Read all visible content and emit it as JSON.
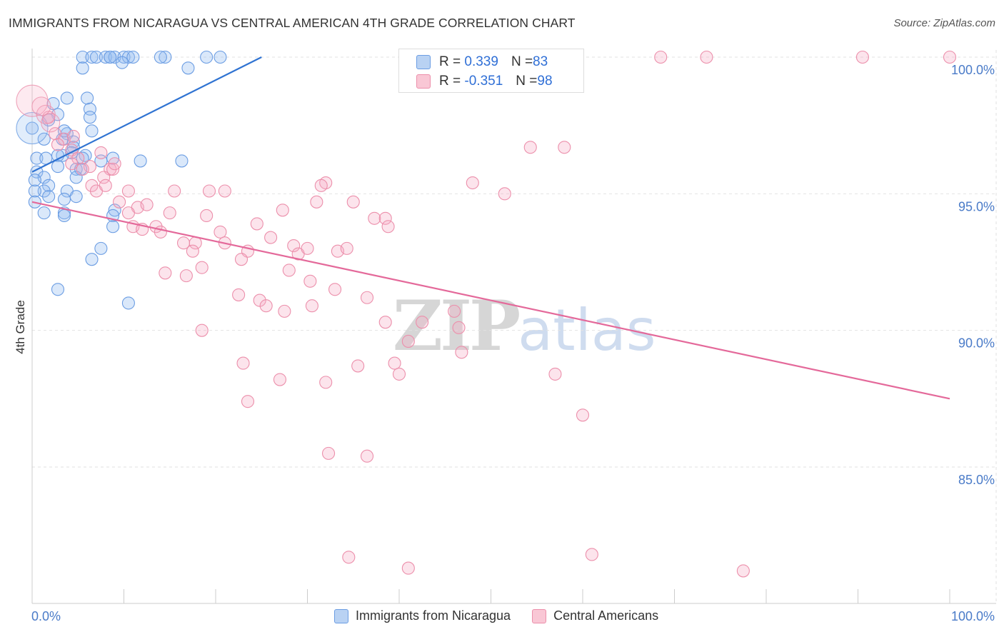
{
  "title": "IMMIGRANTS FROM NICARAGUA VS CENTRAL AMERICAN 4TH GRADE CORRELATION CHART",
  "source": "Source: ZipAtlas.com",
  "watermark": {
    "zip": "ZIP",
    "atlas": "atlas"
  },
  "stats_legend": [
    {
      "r_label": "R = ",
      "r_value": "0.339",
      "n_label": "N = ",
      "n_value": "83",
      "fill": "#b9d2f3",
      "stroke": "#6b9de3"
    },
    {
      "r_label": "R = ",
      "r_value": "-0.351",
      "n_label": "N = ",
      "n_value": "98",
      "fill": "#f9c7d5",
      "stroke": "#ec8fab"
    }
  ],
  "chart_data": {
    "type": "scatter",
    "ylabel": "4th Grade",
    "xlim": [
      0,
      100
    ],
    "ylim": [
      80.5,
      100.5
    ],
    "x_tick_labels": [
      "0.0%",
      "100.0%"
    ],
    "y_ticks": [
      {
        "value": 100,
        "label": "100.0%"
      },
      {
        "value": 95,
        "label": "95.0%"
      },
      {
        "value": 90,
        "label": "90.0%"
      },
      {
        "value": 85,
        "label": "85.0%"
      }
    ],
    "series": [
      {
        "name": "Immigrants from Nicaragua",
        "fill": "rgba(150,188,240,0.35)",
        "stroke": "#6b9de3",
        "trend_color": "#2f73d2",
        "trend": [
          [
            0,
            95.8
          ],
          [
            25,
            100.0
          ]
        ],
        "points": [
          [
            5.5,
            100
          ],
          [
            6.5,
            100
          ],
          [
            7.0,
            100
          ],
          [
            8.0,
            100
          ],
          [
            8.5,
            100
          ],
          [
            9.0,
            100
          ],
          [
            10.0,
            100
          ],
          [
            10.5,
            100
          ],
          [
            11.0,
            100
          ],
          [
            8.5,
            100
          ],
          [
            14.5,
            100
          ],
          [
            14.0,
            100
          ],
          [
            19.0,
            100
          ],
          [
            20.5,
            100
          ],
          [
            5.5,
            99.6
          ],
          [
            9.8,
            99.8
          ],
          [
            17.0,
            99.6
          ],
          [
            3.8,
            98.5
          ],
          [
            2.3,
            98.3
          ],
          [
            6.3,
            98.1
          ],
          [
            2.8,
            97.9
          ],
          [
            6.3,
            97.8
          ],
          [
            1.8,
            97.7
          ],
          [
            6.5,
            97.3
          ],
          [
            3.8,
            97.2
          ],
          [
            1.3,
            97.0
          ],
          [
            3.3,
            97.0
          ],
          [
            4.5,
            96.9
          ],
          [
            4.5,
            96.7
          ],
          [
            4.3,
            96.5
          ],
          [
            3.3,
            96.4
          ],
          [
            5.8,
            96.4
          ],
          [
            2.8,
            96.4
          ],
          [
            0.5,
            96.3
          ],
          [
            1.5,
            96.3
          ],
          [
            8.8,
            96.3
          ],
          [
            7.5,
            96.2
          ],
          [
            11.8,
            96.2
          ],
          [
            16.3,
            96.2
          ],
          [
            2.8,
            96.0
          ],
          [
            4.8,
            95.9
          ],
          [
            5.3,
            95.9
          ],
          [
            0.5,
            95.8
          ],
          [
            1.3,
            95.6
          ],
          [
            4.8,
            95.6
          ],
          [
            0.3,
            95.5
          ],
          [
            1.8,
            95.3
          ],
          [
            1.3,
            95.1
          ],
          [
            3.8,
            95.1
          ],
          [
            0.3,
            95.1
          ],
          [
            1.8,
            94.9
          ],
          [
            4.8,
            94.9
          ],
          [
            3.5,
            94.8
          ],
          [
            0.3,
            94.7
          ],
          [
            1.3,
            94.3
          ],
          [
            3.5,
            94.3
          ],
          [
            3.5,
            94.2
          ],
          [
            9.0,
            94.4
          ],
          [
            8.8,
            94.2
          ],
          [
            8.8,
            93.8
          ],
          [
            7.5,
            93.0
          ],
          [
            6.5,
            92.6
          ],
          [
            2.8,
            91.5
          ],
          [
            10.5,
            91.0
          ],
          [
            0.0,
            97.4
          ],
          [
            6.0,
            98.5
          ],
          [
            3.5,
            97.3
          ],
          [
            5.5,
            96.3
          ]
        ],
        "big_points": [
          [
            0.0,
            97.4
          ]
        ]
      },
      {
        "name": "Central Americans",
        "fill": "rgba(246,170,195,0.32)",
        "stroke": "#ec8fab",
        "trend_color": "#e4699a",
        "trend": [
          [
            0,
            94.7
          ],
          [
            100,
            87.5
          ]
        ],
        "points": [
          [
            68.5,
            100
          ],
          [
            73.5,
            100
          ],
          [
            90.5,
            100
          ],
          [
            100,
            100
          ],
          [
            1.8,
            97.8
          ],
          [
            2.5,
            97.2
          ],
          [
            3.5,
            97.0
          ],
          [
            2.8,
            96.8
          ],
          [
            4.3,
            96.6
          ],
          [
            5.0,
            96.3
          ],
          [
            4.3,
            96.1
          ],
          [
            6.3,
            96.0
          ],
          [
            5.5,
            95.9
          ],
          [
            8.5,
            95.9
          ],
          [
            7.8,
            95.6
          ],
          [
            8.8,
            95.9
          ],
          [
            9.0,
            96.1
          ],
          [
            6.5,
            95.3
          ],
          [
            7.0,
            95.1
          ],
          [
            8.0,
            95.3
          ],
          [
            10.5,
            95.1
          ],
          [
            15.5,
            95.1
          ],
          [
            19.3,
            95.1
          ],
          [
            21.0,
            95.1
          ],
          [
            32.0,
            95.4
          ],
          [
            48.0,
            95.4
          ],
          [
            54.3,
            96.7
          ],
          [
            51.5,
            95.0
          ],
          [
            58.0,
            96.7
          ],
          [
            9.5,
            94.7
          ],
          [
            11.5,
            94.5
          ],
          [
            12.5,
            94.6
          ],
          [
            15.0,
            94.3
          ],
          [
            19.0,
            94.2
          ],
          [
            27.3,
            94.4
          ],
          [
            31.0,
            94.7
          ],
          [
            35.0,
            94.7
          ],
          [
            37.3,
            94.1
          ],
          [
            38.5,
            94.1
          ],
          [
            38.8,
            93.8
          ],
          [
            10.5,
            94.3
          ],
          [
            11.0,
            93.8
          ],
          [
            12.0,
            93.7
          ],
          [
            13.5,
            93.8
          ],
          [
            14.0,
            93.6
          ],
          [
            16.5,
            93.2
          ],
          [
            17.8,
            93.2
          ],
          [
            20.5,
            93.6
          ],
          [
            21.0,
            93.2
          ],
          [
            24.5,
            93.9
          ],
          [
            26.0,
            93.4
          ],
          [
            17.5,
            92.9
          ],
          [
            23.5,
            92.9
          ],
          [
            28.5,
            93.1
          ],
          [
            29.0,
            92.8
          ],
          [
            30.0,
            93.0
          ],
          [
            33.3,
            92.9
          ],
          [
            34.3,
            93.0
          ],
          [
            22.8,
            92.6
          ],
          [
            18.5,
            92.3
          ],
          [
            28.0,
            92.2
          ],
          [
            14.5,
            92.1
          ],
          [
            16.8,
            92.0
          ],
          [
            30.3,
            91.8
          ],
          [
            33.0,
            91.5
          ],
          [
            22.5,
            91.3
          ],
          [
            24.8,
            91.1
          ],
          [
            25.5,
            90.9
          ],
          [
            27.5,
            90.7
          ],
          [
            30.5,
            90.9
          ],
          [
            36.5,
            91.2
          ],
          [
            18.5,
            90.0
          ],
          [
            38.5,
            90.3
          ],
          [
            42.5,
            90.3
          ],
          [
            46.0,
            90.7
          ],
          [
            46.5,
            90.1
          ],
          [
            41.0,
            89.6
          ],
          [
            46.8,
            89.2
          ],
          [
            23.0,
            88.8
          ],
          [
            35.5,
            88.7
          ],
          [
            39.5,
            88.8
          ],
          [
            27.0,
            88.2
          ],
          [
            32.0,
            88.1
          ],
          [
            40.0,
            88.4
          ],
          [
            57.0,
            88.4
          ],
          [
            23.5,
            87.4
          ],
          [
            60.0,
            86.9
          ],
          [
            32.3,
            85.5
          ],
          [
            36.5,
            85.4
          ],
          [
            34.5,
            81.7
          ],
          [
            41.0,
            81.3
          ],
          [
            61.0,
            81.8
          ],
          [
            77.5,
            81.2
          ],
          [
            31.5,
            95.3
          ],
          [
            7.5,
            96.5
          ],
          [
            4.5,
            97.1
          ]
        ],
        "big_points": [
          [
            0.0,
            98.4
          ],
          [
            1.5,
            97.9
          ],
          [
            1.0,
            98.2
          ],
          [
            2.0,
            97.6
          ]
        ]
      }
    ]
  },
  "legend_bottom": [
    {
      "label": "Immigrants from Nicaragua",
      "fill": "#b9d2f3",
      "stroke": "#6b9de3"
    },
    {
      "label": "Central Americans",
      "fill": "#f9c7d5",
      "stroke": "#ec8fab"
    }
  ]
}
